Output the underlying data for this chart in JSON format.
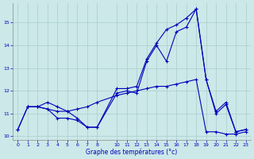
{
  "xlabel": "Graphe des températures (°c)",
  "background_color": "#cce8e8",
  "grid_color": "#aacccc",
  "line_color": "#0000bb",
  "ylim_min": 9.85,
  "ylim_max": 15.85,
  "xlim_min": -0.5,
  "xlim_max": 23.5,
  "yticks": [
    10,
    11,
    12,
    13,
    14,
    15
  ],
  "xticks": [
    0,
    1,
    2,
    3,
    4,
    5,
    6,
    7,
    8,
    10,
    11,
    12,
    13,
    14,
    15,
    16,
    17,
    18,
    19,
    20,
    21,
    22,
    23
  ],
  "line1_x": [
    0,
    1,
    2,
    3,
    4,
    5,
    6,
    7,
    8,
    10,
    11,
    12,
    13,
    14,
    15,
    16,
    17,
    18,
    19,
    20,
    21,
    22,
    23
  ],
  "line1_y": [
    10.3,
    11.3,
    11.3,
    11.5,
    11.3,
    11.1,
    10.8,
    10.4,
    10.4,
    11.9,
    12.0,
    11.9,
    13.3,
    14.0,
    13.3,
    14.6,
    14.8,
    15.6,
    12.5,
    11.0,
    11.4,
    10.2,
    10.3
  ],
  "line2_x": [
    1,
    2,
    3,
    4,
    5,
    6,
    7,
    8,
    10,
    11,
    12,
    13,
    14,
    15,
    16,
    17,
    18,
    19,
    20,
    21,
    22,
    23
  ],
  "line2_y": [
    11.3,
    11.3,
    11.2,
    11.1,
    11.1,
    11.2,
    11.3,
    11.5,
    11.8,
    11.9,
    12.0,
    12.1,
    12.2,
    12.2,
    12.3,
    12.4,
    12.5,
    10.2,
    10.2,
    10.1,
    10.1,
    10.2
  ],
  "line3_x": [
    0,
    1,
    2,
    3,
    4,
    5,
    6,
    7,
    8,
    10,
    11,
    12,
    13,
    14,
    15,
    16,
    17,
    18,
    19,
    20,
    21,
    22,
    23
  ],
  "line3_y": [
    10.3,
    11.3,
    11.3,
    11.2,
    10.8,
    10.8,
    10.7,
    10.4,
    10.4,
    12.1,
    12.1,
    12.2,
    13.4,
    14.1,
    14.7,
    14.9,
    15.2,
    15.6,
    12.5,
    11.1,
    11.5,
    10.2,
    10.3
  ]
}
